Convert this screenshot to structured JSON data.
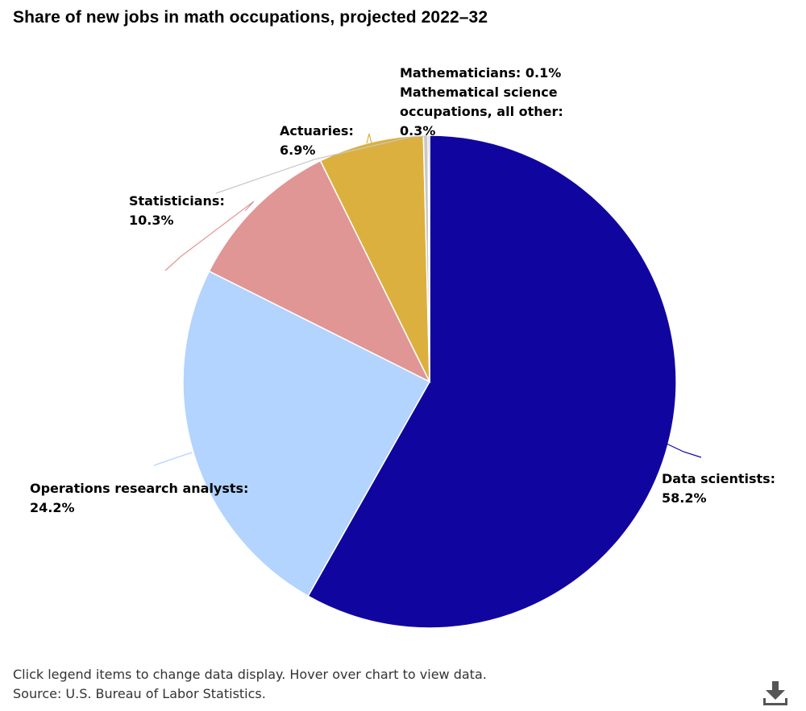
{
  "chart_data": {
    "type": "pie",
    "title": "Share of new jobs in math occupations, projected 2022–32",
    "slices": [
      {
        "label": "Data scientists",
        "value": 58.2,
        "value_text": "58.2%",
        "color": "#10069f"
      },
      {
        "label": "Operations research analysts",
        "value": 24.2,
        "value_text": "24.2%",
        "color": "#b2d4fe"
      },
      {
        "label": "Statisticians",
        "value": 10.3,
        "value_text": "10.3%",
        "color": "#df9695"
      },
      {
        "label": "Actuaries",
        "value": 6.9,
        "value_text": "6.9%",
        "color": "#dcb03e"
      },
      {
        "label": "Mathematical science occupations, all other",
        "value": 0.3,
        "value_text": "0.3%",
        "color": "#c8c8c8"
      },
      {
        "label": "Mathematicians",
        "value": 0.1,
        "value_text": "0.1%",
        "color": "#6b6b6b"
      }
    ]
  },
  "footer": {
    "note": "Click legend items to change data display. Hover over chart to view data.",
    "source": "Source: U.S. Bureau of Labor Statistics."
  },
  "icons": {
    "download": "download-icon"
  }
}
